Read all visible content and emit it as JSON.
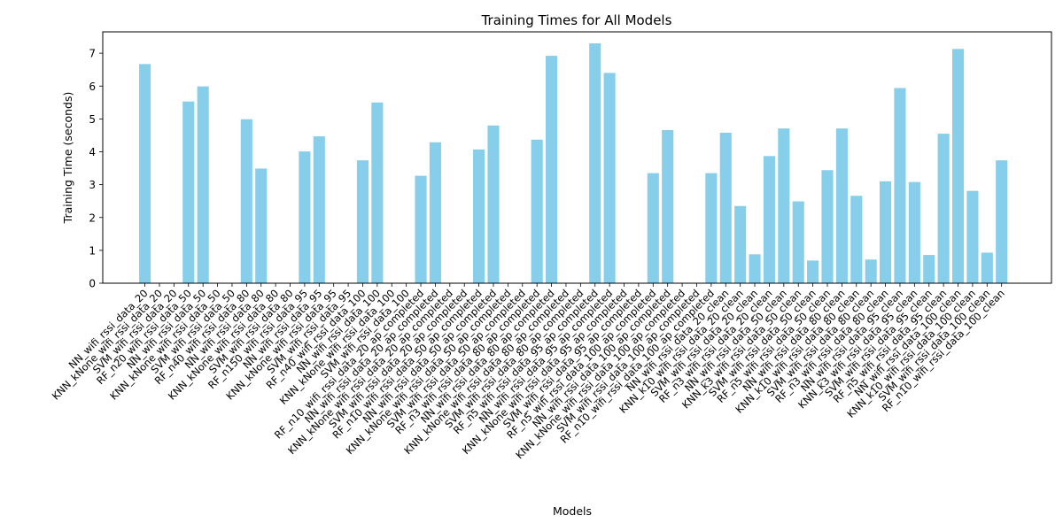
{
  "chart_data": {
    "type": "bar",
    "title": "Training Times for All Models",
    "xlabel": "Models",
    "ylabel": "Training Time (seconds)",
    "ylim": [
      0,
      7.65
    ],
    "yticks": [
      0,
      1,
      2,
      3,
      4,
      5,
      6,
      7
    ],
    "grid": false,
    "bar_color": "#87ceeb",
    "categories": [
      "NN_wifi_rssi_data_20",
      "KNN_kNone_wifi_rssi_data_20",
      "SVM_wifi_rssi_data_20",
      "RF_n20_wifi_rssi_data_50",
      "NN_wifi_rssi_data_50",
      "KNN_kNone_wifi_rssi_data_50",
      "SVM_wifi_rssi_data_50",
      "RF_n40_wifi_rssi_data_80",
      "NN_wifi_rssi_data_80",
      "KNN_kNone_wifi_rssi_data_80",
      "SVM_wifi_rssi_data_80",
      "RF_n150_wifi_rssi_data_95",
      "NN_wifi_rssi_data_95",
      "KNN_kNone_wifi_rssi_data_95",
      "SVM_wifi_rssi_data_95",
      "RF_n40_wifi_rssi_data_100",
      "NN_wifi_rssi_data_100",
      "KNN_kNone_wifi_rssi_data_100",
      "SVM_wifi_rssi_data_100",
      "RF_n10_wifi_rssi_data_20_ap_completed",
      "NN_wifi_rssi_data_20_ap_completed",
      "KNN_kNone_wifi_rssi_data_20_ap_completed",
      "SVM_wifi_rssi_data_20_ap_completed",
      "RF_n10_wifi_rssi_data_50_ap_completed",
      "NN_wifi_rssi_data_50_ap_completed",
      "KNN_kNone_wifi_rssi_data_50_ap_completed",
      "SVM_wifi_rssi_data_50_ap_completed",
      "RF_n3_wifi_rssi_data_80_ap_completed",
      "NN_wifi_rssi_data_80_ap_completed",
      "KNN_kNone_wifi_rssi_data_80_ap_completed",
      "SVM_wifi_rssi_data_80_ap_completed",
      "RF_n5_wifi_rssi_data_95_ap_completed",
      "NN_wifi_rssi_data_95_ap_completed",
      "KNN_kNone_wifi_rssi_data_95_ap_completed",
      "SVM_wifi_rssi_data_95_ap_completed",
      "RF_n5_wifi_rssi_data_100_ap_completed",
      "NN_wifi_rssi_data_100_ap_completed",
      "KNN_kNone_wifi_rssi_data_100_ap_completed",
      "SVM_wifi_rssi_data_100_ap_completed",
      "RF_n10_wifi_rssi_data_100_ap_completed",
      "NN_wifi_rssi_data_20_clean",
      "KNN_k10_wifi_rssi_data_20_clean",
      "SVM_wifi_rssi_data_20_clean",
      "RF_n3_wifi_rssi_data_20_clean",
      "NN_wifi_rssi_data_50_clean",
      "KNN_k3_wifi_rssi_data_50_clean",
      "SVM_wifi_rssi_data_50_clean",
      "RF_n5_wifi_rssi_data_50_clean",
      "NN_wifi_rssi_data_80_clean",
      "KNN_k10_wifi_rssi_data_80_clean",
      "SVM_wifi_rssi_data_80_clean",
      "RF_n3_wifi_rssi_data_80_clean",
      "NN_wifi_rssi_data_95_clean",
      "KNN_k3_wifi_rssi_data_95_clean",
      "SVM_wifi_rssi_data_95_clean",
      "RF_n5_wifi_rssi_data_95_clean",
      "NN_wifi_rssi_data_100_clean",
      "KNN_k10_wifi_rssi_data_100_clean",
      "SVM_wifi_rssi_data_100_clean",
      "RF_n10_wifi_rssi_data_100_clean"
    ],
    "values": [
      6.67,
      0,
      0,
      5.53,
      5.99,
      0,
      0,
      4.99,
      3.49,
      0,
      0,
      4.01,
      4.47,
      0,
      0,
      3.74,
      5.5,
      0,
      0,
      3.27,
      4.29,
      0,
      0,
      4.07,
      4.8,
      0,
      0,
      4.37,
      6.92,
      0,
      0,
      7.3,
      6.4,
      0,
      0,
      3.35,
      4.66,
      0,
      0,
      3.35,
      4.58,
      2.35,
      0.88,
      3.87,
      4.71,
      2.49,
      0.69,
      3.44,
      4.71,
      2.66,
      0.72,
      3.1,
      5.94,
      3.08,
      0.86,
      4.55,
      7.13,
      2.81,
      0.93,
      3.74
    ]
  }
}
